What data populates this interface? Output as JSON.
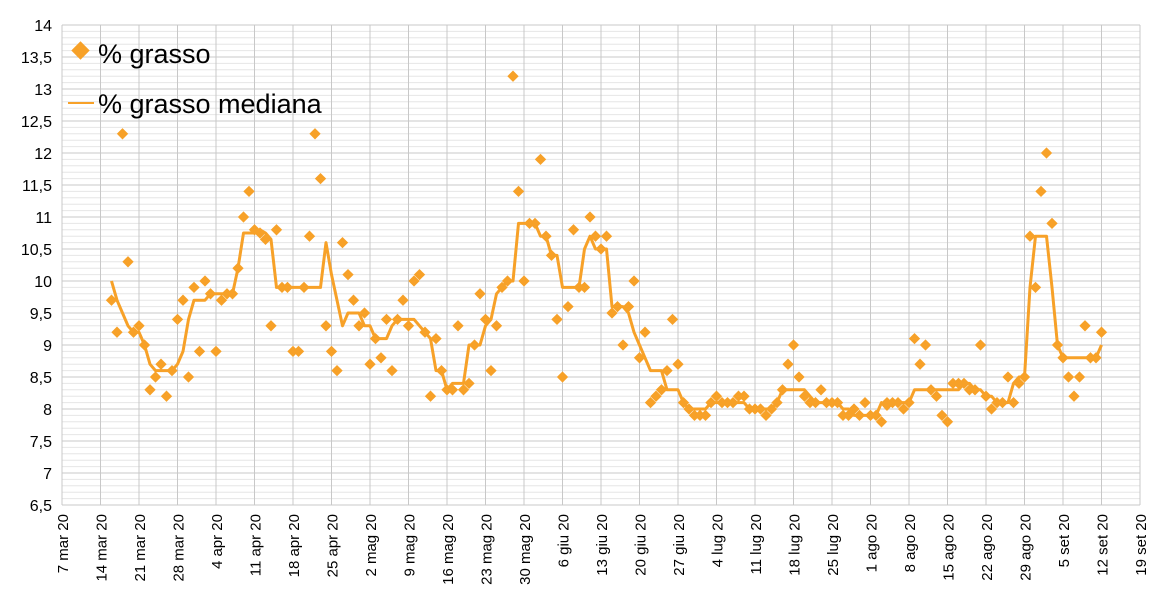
{
  "chart_data": {
    "type": "scatter",
    "title": "",
    "xlabel": "",
    "ylabel": "",
    "ylim": [
      6.5,
      14
    ],
    "y_ticks": [
      "6,5",
      "7",
      "7,5",
      "8",
      "8,5",
      "9",
      "9,5",
      "10",
      "10,5",
      "11",
      "11,5",
      "12",
      "12,5",
      "13",
      "13,5",
      "14"
    ],
    "x_start_date": "7 mar 20",
    "x_range_days": [
      0,
      196
    ],
    "x_ticks": [
      "7 mar 20",
      "14 mar 20",
      "21 mar 20",
      "28 mar 20",
      "4 apr 20",
      "11 apr 20",
      "18 apr 20",
      "25 apr 20",
      "2 mag 20",
      "9 mag 20",
      "16 mag 20",
      "23 mag 20",
      "30 mag 20",
      "6 giu 20",
      "13 giu 20",
      "20 giu 20",
      "27 giu 20",
      "4 lug 20",
      "11 lug 20",
      "18 lug 20",
      "25 lug 20",
      "1 ago 20",
      "8 ago 20",
      "15 ago 20",
      "22 ago 20",
      "29 ago 20",
      "5 set 20",
      "12 set 20",
      "19 set 20"
    ],
    "grid": true,
    "legend_position": "top-left",
    "color": "#F7A128",
    "series": [
      {
        "name": "% grasso",
        "kind": "points",
        "start_day": 9,
        "values": [
          9.7,
          9.2,
          12.3,
          10.3,
          9.2,
          9.3,
          9.0,
          8.3,
          8.5,
          8.7,
          8.2,
          8.6,
          9.4,
          9.7,
          8.5,
          9.9,
          8.9,
          10.0,
          9.8,
          8.9,
          9.7,
          9.8,
          9.8,
          10.2,
          11.0,
          11.4,
          10.8,
          10.75,
          10.65,
          9.3,
          10.8,
          9.9,
          9.9,
          8.9,
          8.9,
          9.9,
          10.7,
          12.3,
          11.6,
          9.3,
          8.9,
          8.6,
          10.6,
          10.1,
          9.7,
          9.3,
          9.5,
          8.7,
          9.1,
          8.8,
          9.4,
          8.6,
          9.4,
          9.7,
          9.3,
          10.0,
          10.1,
          9.2,
          8.2,
          9.1,
          8.6,
          8.3,
          8.3,
          9.3,
          8.3,
          8.4,
          9.0,
          9.8,
          9.4,
          8.6,
          9.3,
          9.9,
          10.0,
          13.2,
          11.4,
          10.0,
          10.9,
          10.9,
          11.9,
          10.7,
          10.4,
          9.4,
          8.5,
          9.6,
          10.8,
          9.9,
          9.9,
          11.0,
          10.7,
          10.5,
          10.7,
          9.5,
          9.6,
          9.0,
          9.6,
          10.0,
          8.8,
          9.2,
          8.1,
          8.2,
          8.3,
          8.6,
          9.4,
          8.7,
          8.1,
          8.0,
          7.9,
          7.9,
          7.9,
          8.1,
          8.2,
          8.1,
          8.1,
          8.1,
          8.2,
          8.2,
          8.0,
          8.0,
          8.0,
          7.9,
          8.0,
          8.1,
          8.3,
          8.7,
          9.0,
          8.5,
          8.2,
          8.1,
          8.1,
          8.3,
          8.1,
          8.1,
          8.1,
          7.9,
          7.9,
          8.0,
          7.9,
          8.1,
          7.9,
          7.9,
          7.8,
          8.1,
          8.1,
          8.1,
          8.0,
          8.1,
          9.1,
          8.7,
          9.0,
          8.3,
          8.2,
          7.9,
          7.8,
          8.4,
          8.4,
          8.4,
          8.3,
          8.3,
          9.0,
          8.2,
          8.0,
          8.1,
          8.1,
          8.5,
          8.1,
          8.4,
          8.5,
          10.7,
          9.9,
          11.4,
          12.0,
          10.9,
          9.0,
          8.8,
          8.5,
          8.2,
          8.5,
          9.3,
          8.8,
          8.8,
          9.2
        ]
      },
      {
        "name": "% grasso mediana",
        "kind": "line",
        "median_window": 7
      }
    ]
  }
}
